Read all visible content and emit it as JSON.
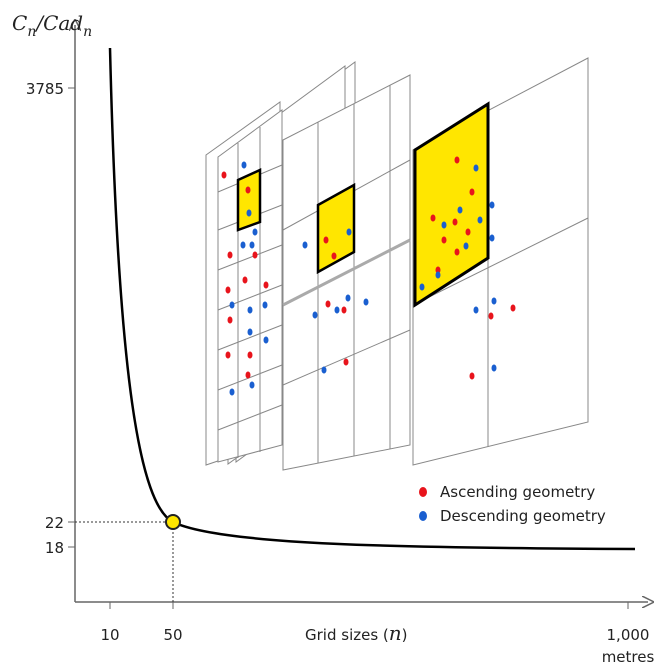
{
  "y_axis": {
    "label_parts": [
      "C",
      "n",
      "/Cad",
      "n"
    ],
    "ticks": [
      "3785",
      "22",
      "18"
    ]
  },
  "x_axis": {
    "label_parts": [
      "Grid sizes (",
      "n",
      ")"
    ],
    "ticks": [
      "10",
      "50",
      "1,000"
    ],
    "unit": "metres"
  },
  "legend": {
    "items": [
      "Ascending geometry",
      "Descending geometry"
    ]
  }
}
